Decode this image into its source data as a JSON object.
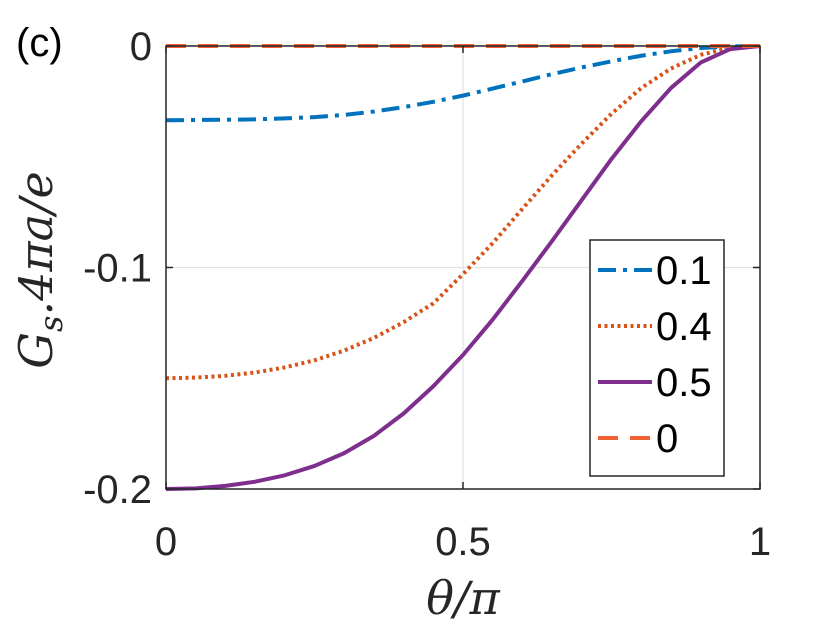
{
  "panel_label": "(c)",
  "chart_data": {
    "type": "line",
    "xlabel": "θ/π",
    "ylabel": "G_s.4πa/e",
    "ylabel_parts": {
      "main": "G",
      "sub": "s",
      "rest": ".4πa/e"
    },
    "xlim": [
      0,
      1
    ],
    "ylim": [
      -0.2,
      0
    ],
    "x_ticks": [
      {
        "value": 0,
        "label": "0"
      },
      {
        "value": 0.5,
        "label": "0.5"
      },
      {
        "value": 1,
        "label": "1"
      }
    ],
    "y_ticks": [
      {
        "value": 0,
        "label": "0"
      },
      {
        "value": -0.1,
        "label": "-0.1"
      },
      {
        "value": -0.2,
        "label": "-0.2"
      }
    ],
    "grid": true,
    "legend_position": "bottom-right",
    "series": [
      {
        "name": "0.1",
        "color": "#0072BD",
        "dash": "dash-dot",
        "x": [
          0,
          0.05,
          0.1,
          0.15,
          0.2,
          0.25,
          0.3,
          0.35,
          0.4,
          0.45,
          0.5,
          0.55,
          0.6,
          0.65,
          0.7,
          0.75,
          0.8,
          0.85,
          0.9,
          0.95,
          1
        ],
        "y": [
          -0.0335,
          -0.0334,
          -0.0333,
          -0.0331,
          -0.0327,
          -0.0321,
          -0.0311,
          -0.0296,
          -0.0276,
          -0.0252,
          -0.0224,
          -0.0192,
          -0.016,
          -0.0127,
          -0.0097,
          -0.0069,
          -0.0044,
          -0.0024,
          -0.0009,
          -0.0002,
          0
        ]
      },
      {
        "name": "0.4",
        "color": "#D95319",
        "dash": "dotted",
        "x": [
          0,
          0.05,
          0.1,
          0.15,
          0.2,
          0.25,
          0.3,
          0.35,
          0.4,
          0.45,
          0.5,
          0.55,
          0.6,
          0.65,
          0.7,
          0.75,
          0.8,
          0.85,
          0.9,
          0.95,
          1
        ],
        "y": [
          -0.15,
          -0.1497,
          -0.1489,
          -0.1474,
          -0.1451,
          -0.1419,
          -0.1375,
          -0.1318,
          -0.1247,
          -0.1162,
          -0.103,
          -0.089,
          -0.0735,
          -0.0583,
          -0.044,
          -0.0306,
          -0.019,
          -0.0102,
          -0.004,
          -0.0008,
          0
        ]
      },
      {
        "name": "0.5",
        "color": "#7E2F8E",
        "dash": "solid",
        "x": [
          0,
          0.05,
          0.1,
          0.15,
          0.2,
          0.25,
          0.3,
          0.35,
          0.4,
          0.45,
          0.5,
          0.55,
          0.6,
          0.65,
          0.7,
          0.75,
          0.8,
          0.85,
          0.9,
          0.95,
          1
        ],
        "y": [
          -0.2,
          -0.1997,
          -0.1986,
          -0.1967,
          -0.1938,
          -0.1896,
          -0.1838,
          -0.176,
          -0.1659,
          -0.1536,
          -0.1395,
          -0.1235,
          -0.106,
          -0.088,
          -0.0695,
          -0.051,
          -0.034,
          -0.019,
          -0.0075,
          -0.0014,
          0
        ]
      },
      {
        "name": "0",
        "color": "#F06030",
        "dash": "dashed",
        "x": [
          0,
          1
        ],
        "y": [
          0,
          0
        ]
      }
    ]
  }
}
